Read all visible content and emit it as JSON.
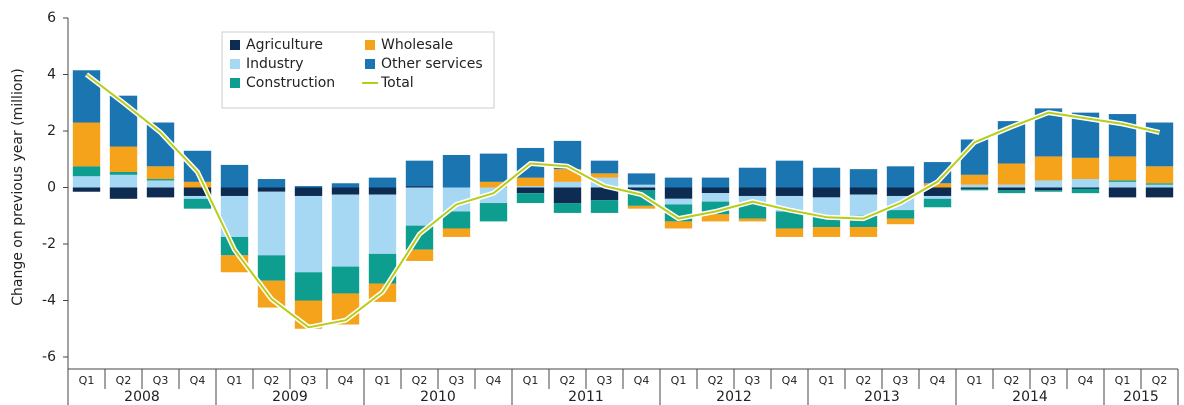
{
  "chart_data": {
    "type": "stacked-bar-line",
    "y_label": "Change on previous year (million)",
    "ylim": [
      -6,
      6
    ],
    "yticks": [
      -6,
      -4,
      -2,
      0,
      2,
      4,
      6
    ],
    "groups": [
      {
        "label": "2008",
        "quarters": [
          "Q1",
          "Q2",
          "Q3",
          "Q4"
        ]
      },
      {
        "label": "2009",
        "quarters": [
          "Q1",
          "Q2",
          "Q3",
          "Q4"
        ]
      },
      {
        "label": "2010",
        "quarters": [
          "Q1",
          "Q2",
          "Q3",
          "Q4"
        ]
      },
      {
        "label": "2011",
        "quarters": [
          "Q1",
          "Q2",
          "Q3",
          "Q4"
        ]
      },
      {
        "label": "2012",
        "quarters": [
          "Q1",
          "Q2",
          "Q3",
          "Q4"
        ]
      },
      {
        "label": "2013",
        "quarters": [
          "Q1",
          "Q2",
          "Q3",
          "Q4"
        ]
      },
      {
        "label": "2014",
        "quarters": [
          "Q1",
          "Q2",
          "Q3",
          "Q4"
        ]
      },
      {
        "label": "2015",
        "quarters": [
          "Q1",
          "Q2"
        ]
      }
    ],
    "series": [
      {
        "name": "Agriculture",
        "color": "#0e2b52",
        "values": [
          -0.15,
          -0.4,
          -0.35,
          -0.3,
          -0.3,
          -0.15,
          -0.3,
          -0.25,
          -0.25,
          0.05,
          0.0,
          0.0,
          -0.2,
          -0.55,
          -0.45,
          -0.1,
          -0.4,
          -0.2,
          -0.3,
          -0.3,
          -0.35,
          -0.25,
          -0.3,
          -0.3,
          -0.05,
          -0.1,
          -0.1,
          -0.05,
          -0.35,
          -0.35
        ]
      },
      {
        "name": "Industry",
        "color": "#a6d8f4",
        "values": [
          0.4,
          0.45,
          0.25,
          -0.1,
          -1.45,
          -2.25,
          -2.7,
          -2.55,
          -2.1,
          -1.35,
          -0.85,
          -0.55,
          0.05,
          0.2,
          0.35,
          0.1,
          -0.2,
          -0.3,
          -0.25,
          -0.55,
          -0.65,
          -0.75,
          -0.5,
          -0.1,
          0.1,
          0.1,
          0.25,
          0.3,
          0.2,
          0.1
        ]
      },
      {
        "name": "Construction",
        "color": "#0d9e8f",
        "values": [
          0.35,
          0.1,
          0.05,
          -0.35,
          -0.65,
          -0.9,
          -1.0,
          -0.95,
          -1.05,
          -0.85,
          -0.6,
          -0.65,
          -0.35,
          -0.35,
          -0.45,
          -0.55,
          -0.6,
          -0.45,
          -0.55,
          -0.6,
          -0.4,
          -0.4,
          -0.3,
          -0.3,
          -0.05,
          -0.1,
          -0.05,
          -0.15,
          0.05,
          0.05
        ]
      },
      {
        "name": "Wholesale",
        "color": "#f5a31a",
        "values": [
          1.55,
          0.9,
          0.45,
          0.2,
          -0.6,
          -0.95,
          -1.0,
          -1.1,
          -0.65,
          -0.4,
          -0.3,
          0.2,
          0.3,
          0.45,
          0.15,
          -0.1,
          -0.25,
          -0.25,
          -0.1,
          -0.3,
          -0.35,
          -0.35,
          -0.2,
          0.15,
          0.35,
          0.75,
          0.85,
          0.75,
          0.85,
          0.6
        ]
      },
      {
        "name": "Other services",
        "color": "#1a75b0",
        "values": [
          1.85,
          1.8,
          1.55,
          1.1,
          0.8,
          0.3,
          0.05,
          0.15,
          0.35,
          0.9,
          1.15,
          1.0,
          1.05,
          1.0,
          0.45,
          0.4,
          0.35,
          0.35,
          0.7,
          0.95,
          0.7,
          0.65,
          0.75,
          0.75,
          1.25,
          1.5,
          1.7,
          1.6,
          1.5,
          1.55
        ]
      }
    ],
    "total": {
      "name": "Total",
      "color": "#b8cc1a",
      "values": [
        4.0,
        3.0,
        1.95,
        0.55,
        -2.2,
        -3.95,
        -4.95,
        -4.7,
        -3.7,
        -1.65,
        -0.6,
        -0.2,
        0.85,
        0.75,
        0.05,
        -0.25,
        -1.1,
        -0.85,
        -0.5,
        -0.8,
        -1.05,
        -1.1,
        -0.55,
        0.2,
        1.6,
        2.15,
        2.65,
        2.45,
        2.25,
        1.95
      ]
    }
  }
}
